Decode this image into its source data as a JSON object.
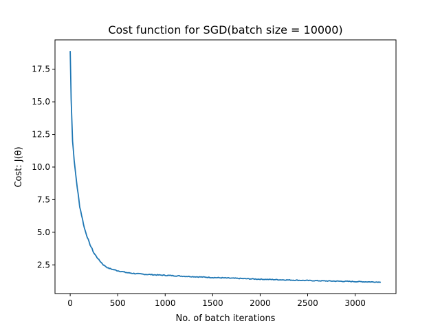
{
  "chart_data": {
    "type": "line",
    "title": "Cost function for SGD(batch size = 10000)",
    "xlabel": "No. of batch iterations",
    "ylabel": "Cost: J(θ)",
    "xlim": [
      -160,
      3430
    ],
    "ylim": [
      0.3,
      19.75
    ],
    "x_ticks": [
      0,
      500,
      1000,
      1500,
      2000,
      2500,
      3000
    ],
    "y_ticks": [
      2.5,
      5.0,
      7.5,
      10.0,
      12.5,
      15.0,
      17.5
    ],
    "x_tick_labels": [
      "0",
      "500",
      "1000",
      "1500",
      "2000",
      "2500",
      "3000"
    ],
    "y_tick_labels": [
      "2.5",
      "5.0",
      "7.5",
      "10.0",
      "12.5",
      "15.0",
      "17.5"
    ],
    "grid": false,
    "series": [
      {
        "color": "#1f77b4",
        "x": [
          0,
          10,
          25,
          50,
          75,
          100,
          150,
          200,
          250,
          300,
          350,
          400,
          500,
          600,
          700,
          800,
          1000,
          1200,
          1500,
          2000,
          2500,
          3000,
          3270
        ],
        "y": [
          18.9,
          15.3,
          12.0,
          9.9,
          8.4,
          7.0,
          5.3,
          4.2,
          3.4,
          2.9,
          2.5,
          2.25,
          2.05,
          1.9,
          1.82,
          1.77,
          1.7,
          1.63,
          1.53,
          1.4,
          1.3,
          1.22,
          1.18
        ]
      }
    ]
  }
}
